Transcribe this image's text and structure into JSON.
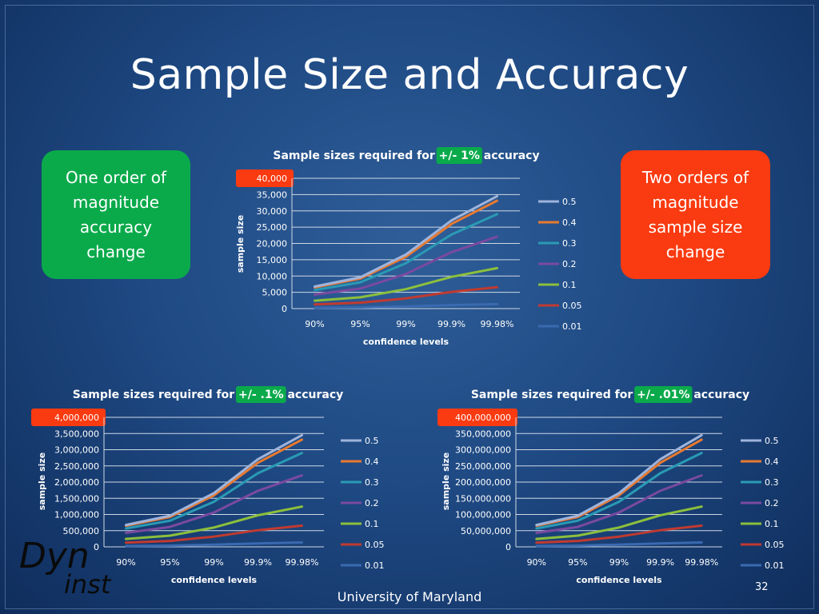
{
  "slide": {
    "title": "Sample Size and Accuracy",
    "callout_left": "One order of\nmagnitude\naccuracy\nchange",
    "callout_right": "Two orders of\nmagnitude\nsample size\nchange",
    "footer": "University of Maryland",
    "page_number": "32",
    "logo_text_1": "Dyn",
    "logo_text_2": "inst"
  },
  "colors": {
    "highlight_green": "#0aaa4b",
    "highlight_red": "#fa3a10",
    "series": {
      "0.5": "#9fb4dc",
      "0.4": "#e87a30",
      "0.3": "#2a9ab4",
      "0.2": "#7a4aa0",
      "0.1": "#8cbf3c",
      "0.05": "#c03a30",
      "0.01": "#3a6ab0"
    }
  },
  "chart_data": [
    {
      "type": "line",
      "title_prefix": "Sample sizes required for ",
      "title_highlight": "+/- 1%",
      "title_suffix": " accuracy",
      "xlabel": "confidence levels",
      "ylabel": "sample size",
      "categories": [
        "90%",
        "95%",
        "99%",
        "99.9%",
        "99.98%"
      ],
      "yticks": [
        "0",
        "5,000",
        "10,000",
        "15,000",
        "20,000",
        "25,000",
        "30,000",
        "35,000",
        "40,000"
      ],
      "ylim": [
        0,
        40000
      ],
      "grid": true,
      "legend_position": "right",
      "series": [
        {
          "name": "0.5",
          "values": [
            6765,
            9604,
            16590,
            27060,
            34500
          ]
        },
        {
          "name": "0.4",
          "values": [
            6494,
            9220,
            15926,
            25978,
            33120
          ]
        },
        {
          "name": "0.3",
          "values": [
            5683,
            8067,
            13935,
            22730,
            28980
          ]
        },
        {
          "name": "0.2",
          "values": [
            4330,
            6147,
            10617,
            17318,
            22080
          ]
        },
        {
          "name": "0.1",
          "values": [
            2435,
            3457,
            5972,
            9742,
            12420
          ]
        },
        {
          "name": "0.05",
          "values": [
            1285,
            1825,
            3152,
            5141,
            6555
          ]
        },
        {
          "name": "0.01",
          "values": [
            268,
            380,
            657,
            1072,
            1366
          ]
        }
      ]
    },
    {
      "type": "line",
      "title_prefix": "Sample sizes required for ",
      "title_highlight": "+/- .1%",
      "title_suffix": " accuracy",
      "xlabel": "confidence levels",
      "ylabel": "sample size",
      "categories": [
        "90%",
        "95%",
        "99%",
        "99.9%",
        "99.98%"
      ],
      "yticks": [
        "0",
        "500,000",
        "1,000,000",
        "1,500,000",
        "2,000,000",
        "2,500,000",
        "3,000,000",
        "3,500,000",
        "4,000,000"
      ],
      "ylim": [
        0,
        4000000
      ],
      "grid": true,
      "legend_position": "right",
      "series": [
        {
          "name": "0.5",
          "values": [
            676500,
            960400,
            1659000,
            2706000,
            3450000
          ]
        },
        {
          "name": "0.4",
          "values": [
            649400,
            922000,
            1592600,
            2597800,
            3312000
          ]
        },
        {
          "name": "0.3",
          "values": [
            568300,
            806700,
            1393500,
            2273000,
            2898000
          ]
        },
        {
          "name": "0.2",
          "values": [
            433000,
            614700,
            1061700,
            1731800,
            2208000
          ]
        },
        {
          "name": "0.1",
          "values": [
            243500,
            345700,
            597200,
            974200,
            1242000
          ]
        },
        {
          "name": "0.05",
          "values": [
            128500,
            182500,
            315200,
            514100,
            655500
          ]
        },
        {
          "name": "0.01",
          "values": [
            26800,
            38000,
            65700,
            107200,
            136600
          ]
        }
      ]
    },
    {
      "type": "line",
      "title_prefix": "Sample sizes required for ",
      "title_highlight": "+/- .01%",
      "title_suffix": " accuracy",
      "xlabel": "confidence levels",
      "ylabel": "sample size",
      "categories": [
        "90%",
        "95%",
        "99%",
        "99.9%",
        "99.98%"
      ],
      "yticks": [
        "0",
        "50,000,000",
        "100,000,000",
        "150,000,000",
        "200,000,000",
        "250,000,000",
        "300,000,000",
        "350,000,000",
        "400,000,000"
      ],
      "ylim": [
        0,
        400000000
      ],
      "grid": true,
      "legend_position": "right",
      "series": [
        {
          "name": "0.5",
          "values": [
            67650000,
            96040000,
            165900000,
            270600000,
            345000000
          ]
        },
        {
          "name": "0.4",
          "values": [
            64940000,
            92200000,
            159260000,
            259780000,
            331200000
          ]
        },
        {
          "name": "0.3",
          "values": [
            56830000,
            80670000,
            139350000,
            227300000,
            289800000
          ]
        },
        {
          "name": "0.2",
          "values": [
            43300000,
            61470000,
            106170000,
            173180000,
            220800000
          ]
        },
        {
          "name": "0.1",
          "values": [
            24350000,
            34570000,
            59720000,
            97420000,
            124200000
          ]
        },
        {
          "name": "0.05",
          "values": [
            12850000,
            18250000,
            31520000,
            51410000,
            65550000
          ]
        },
        {
          "name": "0.01",
          "values": [
            2680000,
            3800000,
            6570000,
            10720000,
            13660000
          ]
        }
      ]
    }
  ]
}
